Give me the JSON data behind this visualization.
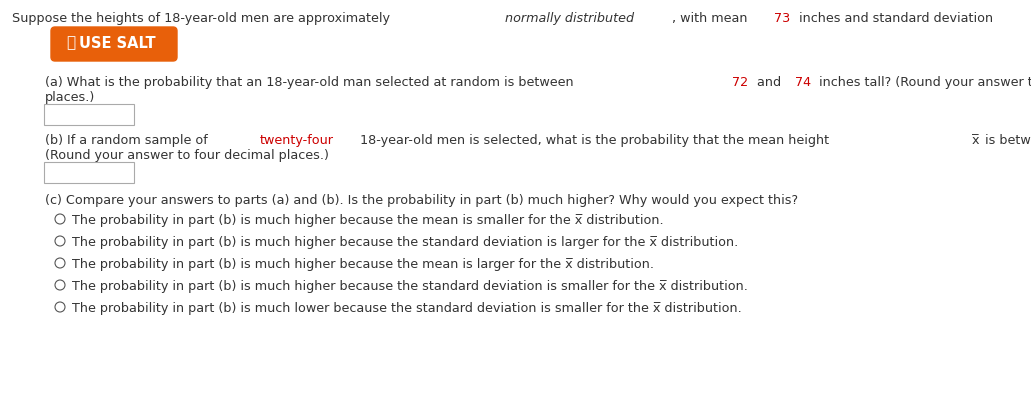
{
  "bg_color": "#ffffff",
  "text_color": "#333333",
  "red_color": "#cc0000",
  "orange_color": "#e8600a",
  "button_text": "USE SALT",
  "button_color": "#e8600a",
  "button_text_color": "#ffffff",
  "part_c_header": "(c) Compare your answers to parts (a) and (b). Is the probability in part (b) much higher? Why would you expect this?",
  "radio_options": [
    "The probability in part (b) is much higher because the mean is smaller for the x̅ distribution.",
    "The probability in part (b) is much higher because the standard deviation is larger for the x̅ distribution.",
    "The probability in part (b) is much higher because the mean is larger for the x̅ distribution.",
    "The probability in part (b) is much higher because the standard deviation is smaller for the x̅ distribution.",
    "The probability in part (b) is much lower because the standard deviation is smaller for the x̅ distribution."
  ],
  "font_size_main": 9.2,
  "font_size_button": 10.5
}
